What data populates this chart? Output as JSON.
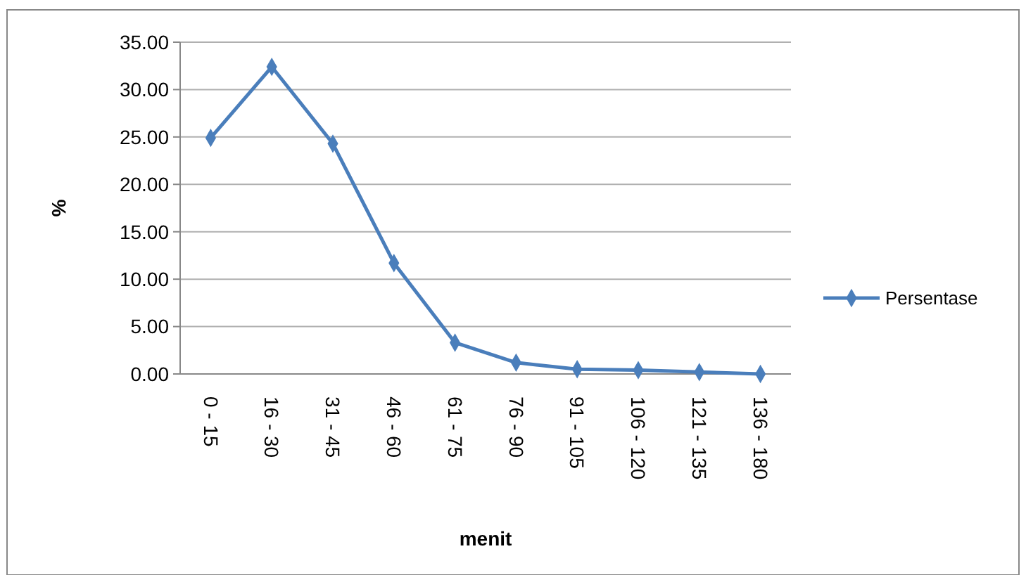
{
  "chart_data": {
    "type": "line",
    "xlabel": "menit",
    "ylabel": "%",
    "categories": [
      "0 - 15",
      "16 - 30",
      "31 - 45",
      "46 - 60",
      "61 - 75",
      "76 - 90",
      "91 - 105",
      "106 - 120",
      "121 - 135",
      "136 - 180"
    ],
    "series": [
      {
        "name": "Persentase",
        "color": "#4a7ebb",
        "values": [
          24.9,
          32.4,
          24.3,
          11.7,
          3.3,
          1.2,
          0.5,
          0.4,
          0.2,
          0.0
        ]
      }
    ],
    "ylim": [
      0,
      35
    ],
    "yticks": [
      {
        "value": 0,
        "label": "0.00"
      },
      {
        "value": 5,
        "label": "5.00"
      },
      {
        "value": 10,
        "label": "10.00"
      },
      {
        "value": 15,
        "label": "15.00"
      },
      {
        "value": 20,
        "label": "20.00"
      },
      {
        "value": 25,
        "label": "25.00"
      },
      {
        "value": 30,
        "label": "30.00"
      },
      {
        "value": 35,
        "label": "35.00"
      }
    ],
    "grid": "y",
    "legend": "right",
    "marker": "diamond",
    "line_style": "solid"
  }
}
